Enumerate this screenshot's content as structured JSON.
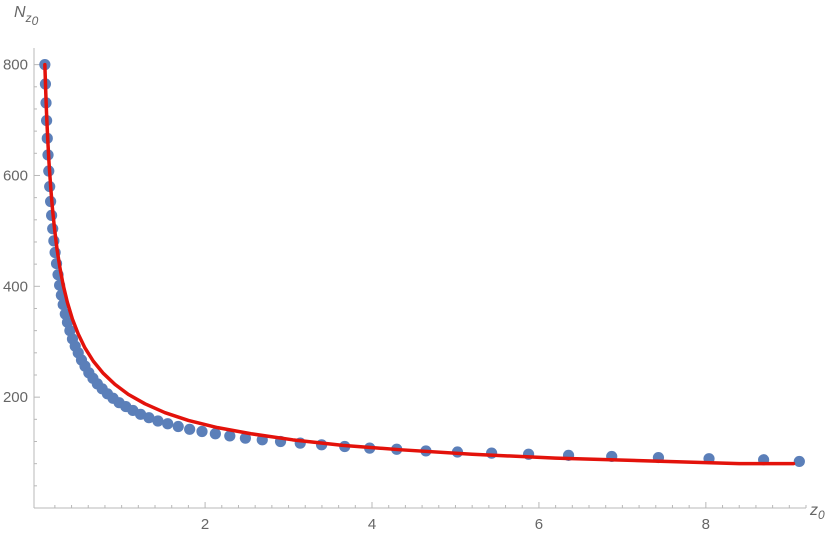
{
  "chart_data": {
    "type": "scatter",
    "xlabel": "z",
    "xlabel_sub": "0",
    "ylabel": "N",
    "ylabel_sub": "z",
    "ylabel_sub_sub": "0",
    "xlim": [
      -0.05,
      9.2
    ],
    "ylim": [
      0,
      830
    ],
    "xticks": [
      2,
      4,
      6,
      8
    ],
    "xtick_labels": [
      "2",
      "4",
      "6",
      "8"
    ],
    "yticks": [
      200,
      400,
      600,
      800
    ],
    "ytick_labels": [
      "200",
      "400",
      "600",
      "800"
    ],
    "minor_xtick_step": 0.2,
    "minor_ytick_step": 40,
    "grid": false,
    "colors": {
      "points": "#5b7fb9",
      "fit": "#e3120b",
      "axis": "#b8b8b8",
      "text": "#666666"
    },
    "series": [
      {
        "kind": "points",
        "x": [
          0.08,
          0.087,
          0.094,
          0.101,
          0.109,
          0.118,
          0.127,
          0.138,
          0.149,
          0.161,
          0.174,
          0.188,
          0.203,
          0.22,
          0.238,
          0.257,
          0.278,
          0.3,
          0.325,
          0.351,
          0.38,
          0.411,
          0.444,
          0.48,
          0.519,
          0.561,
          0.607,
          0.656,
          0.709,
          0.767,
          0.83,
          0.897,
          0.97,
          1.05,
          1.135,
          1.227,
          1.327,
          1.435,
          1.552,
          1.678,
          1.815,
          1.963,
          2.123,
          2.296,
          2.483,
          2.685,
          2.904,
          3.14,
          3.396,
          3.673,
          3.972,
          4.296,
          4.646,
          5.024,
          5.433,
          5.876,
          6.355,
          6.872,
          7.432,
          8.038,
          8.692,
          9.12
        ],
        "y": [
          800,
          765,
          731,
          699,
          667,
          637,
          608,
          580,
          553,
          528,
          504,
          482,
          461,
          441,
          421,
          402,
          384,
          367,
          350,
          335,
          320,
          305,
          292,
          280,
          267,
          256,
          244,
          234,
          224,
          215,
          206,
          198,
          190,
          183,
          176,
          169,
          163,
          157,
          152,
          147,
          142,
          138,
          134,
          130,
          126,
          123,
          120,
          117,
          114,
          111,
          108,
          106,
          103,
          101,
          99,
          97,
          95,
          93,
          91,
          89,
          87,
          84
        ]
      },
      {
        "kind": "fit-line",
        "x": [
          0.08,
          0.09,
          0.1,
          0.115,
          0.13,
          0.15,
          0.17,
          0.195,
          0.225,
          0.26,
          0.3,
          0.35,
          0.41,
          0.48,
          0.56,
          0.66,
          0.78,
          0.92,
          1.08,
          1.28,
          1.52,
          1.8,
          2.15,
          2.55,
          3.05,
          3.65,
          4.35,
          5.2,
          6.2,
          7.3,
          8.4,
          9.05
        ],
        "y": [
          800,
          754,
          713,
          664,
          623,
          579,
          542,
          505,
          468,
          434,
          402,
          371,
          341,
          314,
          289,
          265,
          243,
          223,
          205,
          188,
          172,
          158,
          145,
          134,
          123,
          113,
          105,
          97,
          90,
          85,
          80,
          80
        ]
      }
    ]
  }
}
